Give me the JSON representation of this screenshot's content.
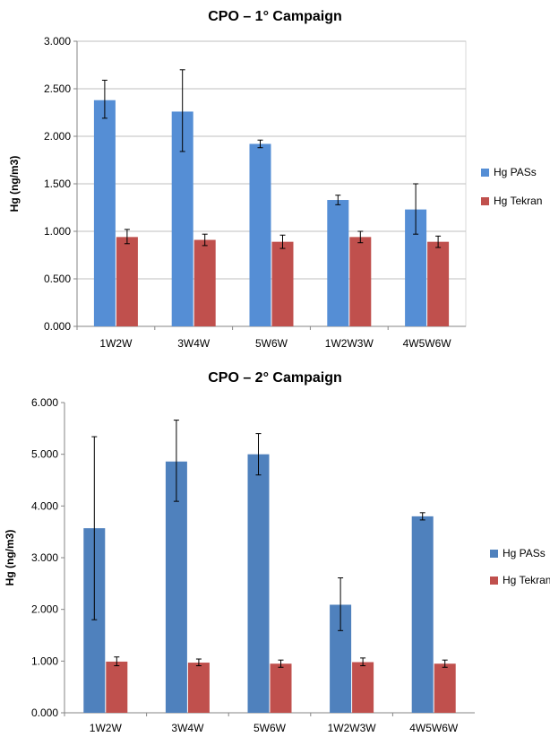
{
  "chart_data": [
    {
      "type": "bar",
      "title": "CPO – 1° Campaign",
      "xlabel": "",
      "ylabel": "Hg (ng/m3)",
      "ylim": [
        0,
        3
      ],
      "yticks": [
        "0.000",
        "0.500",
        "1.000",
        "1.500",
        "2.000",
        "2.500",
        "3.000"
      ],
      "grid": true,
      "legend": "right",
      "categories": [
        "1W2W",
        "3W4W",
        "5W6W",
        "1W2W3W",
        "4W5W6W"
      ],
      "series": [
        {
          "name": "Hg PASs",
          "color": "#558ED5",
          "values": [
            2.38,
            2.26,
            1.92,
            1.33,
            1.23
          ],
          "error_low": [
            2.19,
            1.84,
            1.88,
            1.28,
            0.97
          ],
          "error_high": [
            2.59,
            2.7,
            1.96,
            1.38,
            1.5
          ]
        },
        {
          "name": "Hg Tekran",
          "color": "#C0504D",
          "values": [
            0.94,
            0.91,
            0.89,
            0.94,
            0.89
          ],
          "error_low": [
            0.87,
            0.85,
            0.82,
            0.88,
            0.83
          ],
          "error_high": [
            1.02,
            0.97,
            0.96,
            1.0,
            0.95
          ]
        }
      ]
    },
    {
      "type": "bar",
      "title": "CPO – 2° Campaign",
      "xlabel": "",
      "ylabel": "Hg (ng/m3)",
      "ylim": [
        0,
        6
      ],
      "yticks": [
        "0.000",
        "1.000",
        "2.000",
        "3.000",
        "4.000",
        "5.000",
        "6.000"
      ],
      "grid": false,
      "legend": "right",
      "categories": [
        "1W2W",
        "3W4W",
        "5W6W",
        "1W2W3W",
        "4W5W6W"
      ],
      "series": [
        {
          "name": "Hg PASs",
          "color": "#4F81BD",
          "values": [
            3.57,
            4.86,
            5.0,
            2.09,
            3.8
          ],
          "error_low": [
            1.8,
            4.09,
            4.6,
            1.59,
            3.73
          ],
          "error_high": [
            5.34,
            5.66,
            5.4,
            2.61,
            3.87
          ]
        },
        {
          "name": "Hg Tekran",
          "color": "#C0504D",
          "values": [
            0.99,
            0.97,
            0.95,
            0.98,
            0.95
          ],
          "error_low": [
            0.91,
            0.91,
            0.88,
            0.91,
            0.88
          ],
          "error_high": [
            1.08,
            1.04,
            1.02,
            1.06,
            1.02
          ]
        }
      ]
    }
  ]
}
